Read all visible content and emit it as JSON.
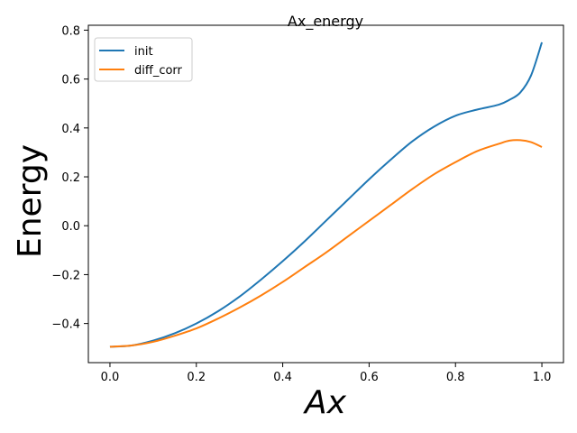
{
  "chart_data": {
    "type": "line",
    "title": "Ax_energy",
    "xlabel": "Ax",
    "ylabel": "Energy",
    "xlim": [
      -0.05,
      1.05
    ],
    "ylim": [
      -0.56,
      0.82
    ],
    "xticks": [
      0.0,
      0.2,
      0.4,
      0.6,
      0.8,
      1.0
    ],
    "xtick_labels": [
      "0.0",
      "0.2",
      "0.4",
      "0.6",
      "0.8",
      "1.0"
    ],
    "yticks": [
      -0.4,
      -0.2,
      0.0,
      0.2,
      0.4,
      0.6,
      0.8
    ],
    "ytick_labels": [
      "−0.4",
      "−0.2",
      "0.0",
      "0.2",
      "0.4",
      "0.6",
      "0.8"
    ],
    "grid": false,
    "legend_position": "top-left",
    "x": [
      0.0,
      0.05,
      0.1,
      0.15,
      0.2,
      0.25,
      0.3,
      0.35,
      0.4,
      0.45,
      0.5,
      0.55,
      0.6,
      0.65,
      0.7,
      0.75,
      0.8,
      0.85,
      0.9,
      0.925,
      0.95,
      0.975,
      1.0
    ],
    "series": [
      {
        "name": "init",
        "color": "#1f77b4",
        "values": [
          -0.495,
          -0.49,
          -0.47,
          -0.44,
          -0.4,
          -0.35,
          -0.29,
          -0.22,
          -0.145,
          -0.065,
          0.02,
          0.105,
          0.19,
          0.27,
          0.345,
          0.405,
          0.45,
          0.475,
          0.495,
          0.515,
          0.545,
          0.615,
          0.75
        ]
      },
      {
        "name": "diff_corr",
        "color": "#ff7f0e",
        "values": [
          -0.495,
          -0.49,
          -0.475,
          -0.45,
          -0.42,
          -0.38,
          -0.335,
          -0.285,
          -0.23,
          -0.17,
          -0.11,
          -0.045,
          0.02,
          0.085,
          0.15,
          0.21,
          0.26,
          0.305,
          0.335,
          0.348,
          0.35,
          0.342,
          0.322
        ]
      }
    ]
  }
}
